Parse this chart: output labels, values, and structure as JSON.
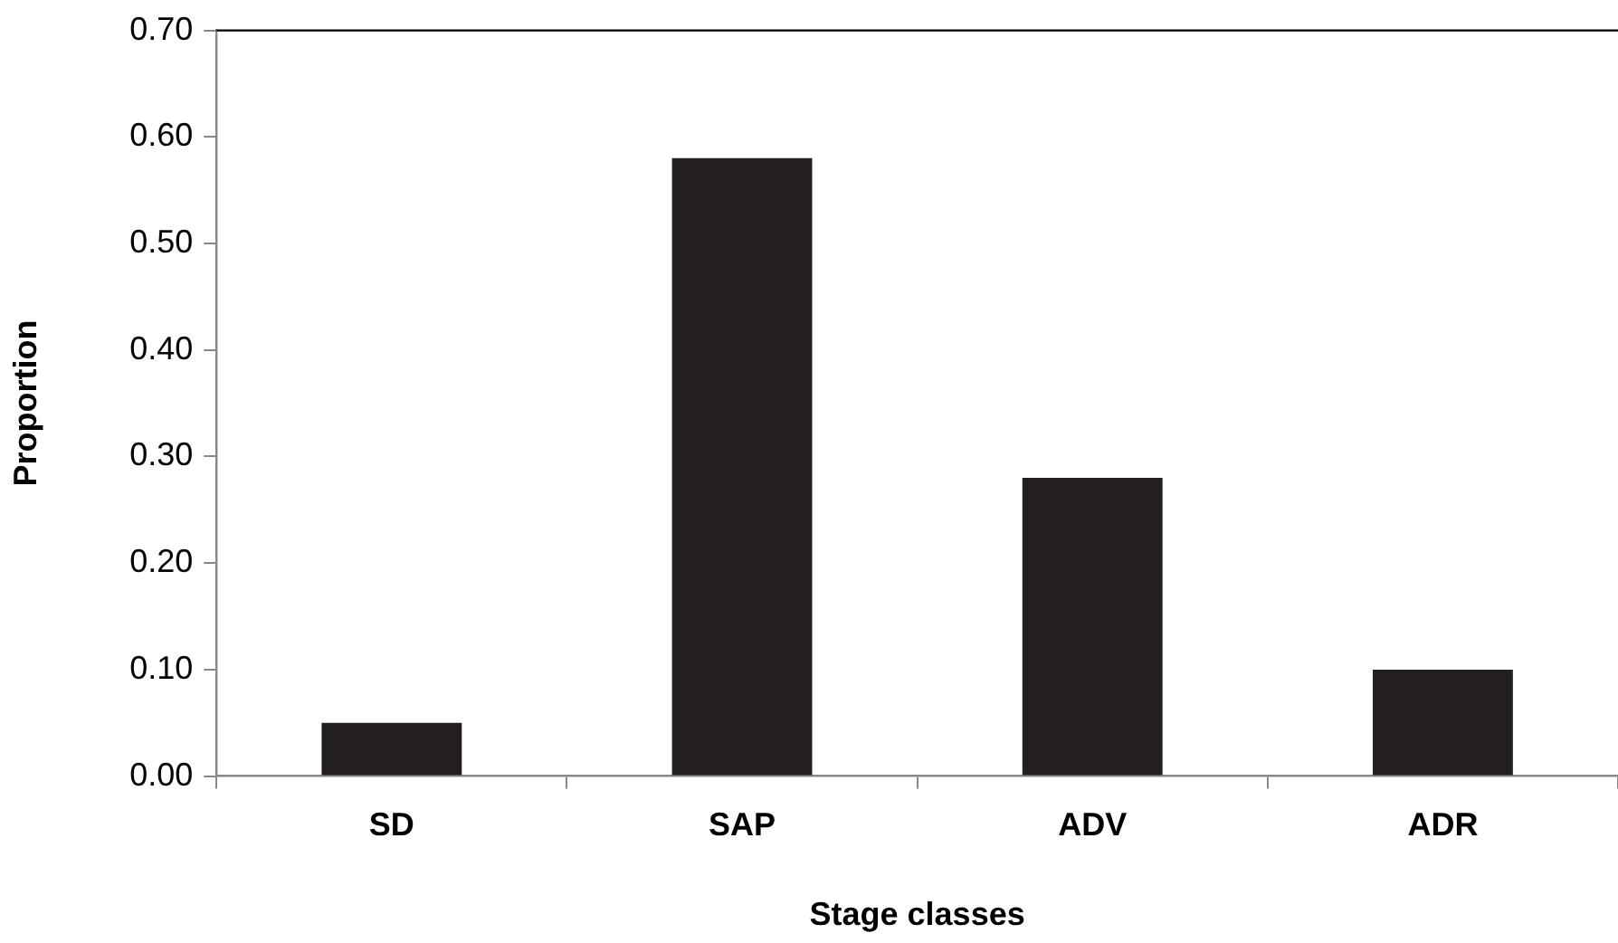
{
  "chart_data": {
    "type": "bar",
    "xlabel": "Stage classes",
    "ylabel": "Proportion",
    "categories": [
      "SD",
      "SAP",
      "ADV",
      "ADR"
    ],
    "values": [
      0.05,
      0.58,
      0.28,
      0.1
    ],
    "color": "#231f20",
    "ylim": [
      0,
      0.7
    ],
    "yticks": [
      {
        "value": 0,
        "label": "0.00"
      },
      {
        "value": 0.1,
        "label": "0.10"
      },
      {
        "value": 0.2,
        "label": "0.20"
      },
      {
        "value": 0.3,
        "label": "0.30"
      },
      {
        "value": 0.4,
        "label": "0.40"
      },
      {
        "value": 0.5,
        "label": "0.50"
      },
      {
        "value": 0.6,
        "label": "0.60"
      },
      {
        "value": 0.7,
        "label": "0.70"
      }
    ],
    "grid": false,
    "legend": false
  }
}
